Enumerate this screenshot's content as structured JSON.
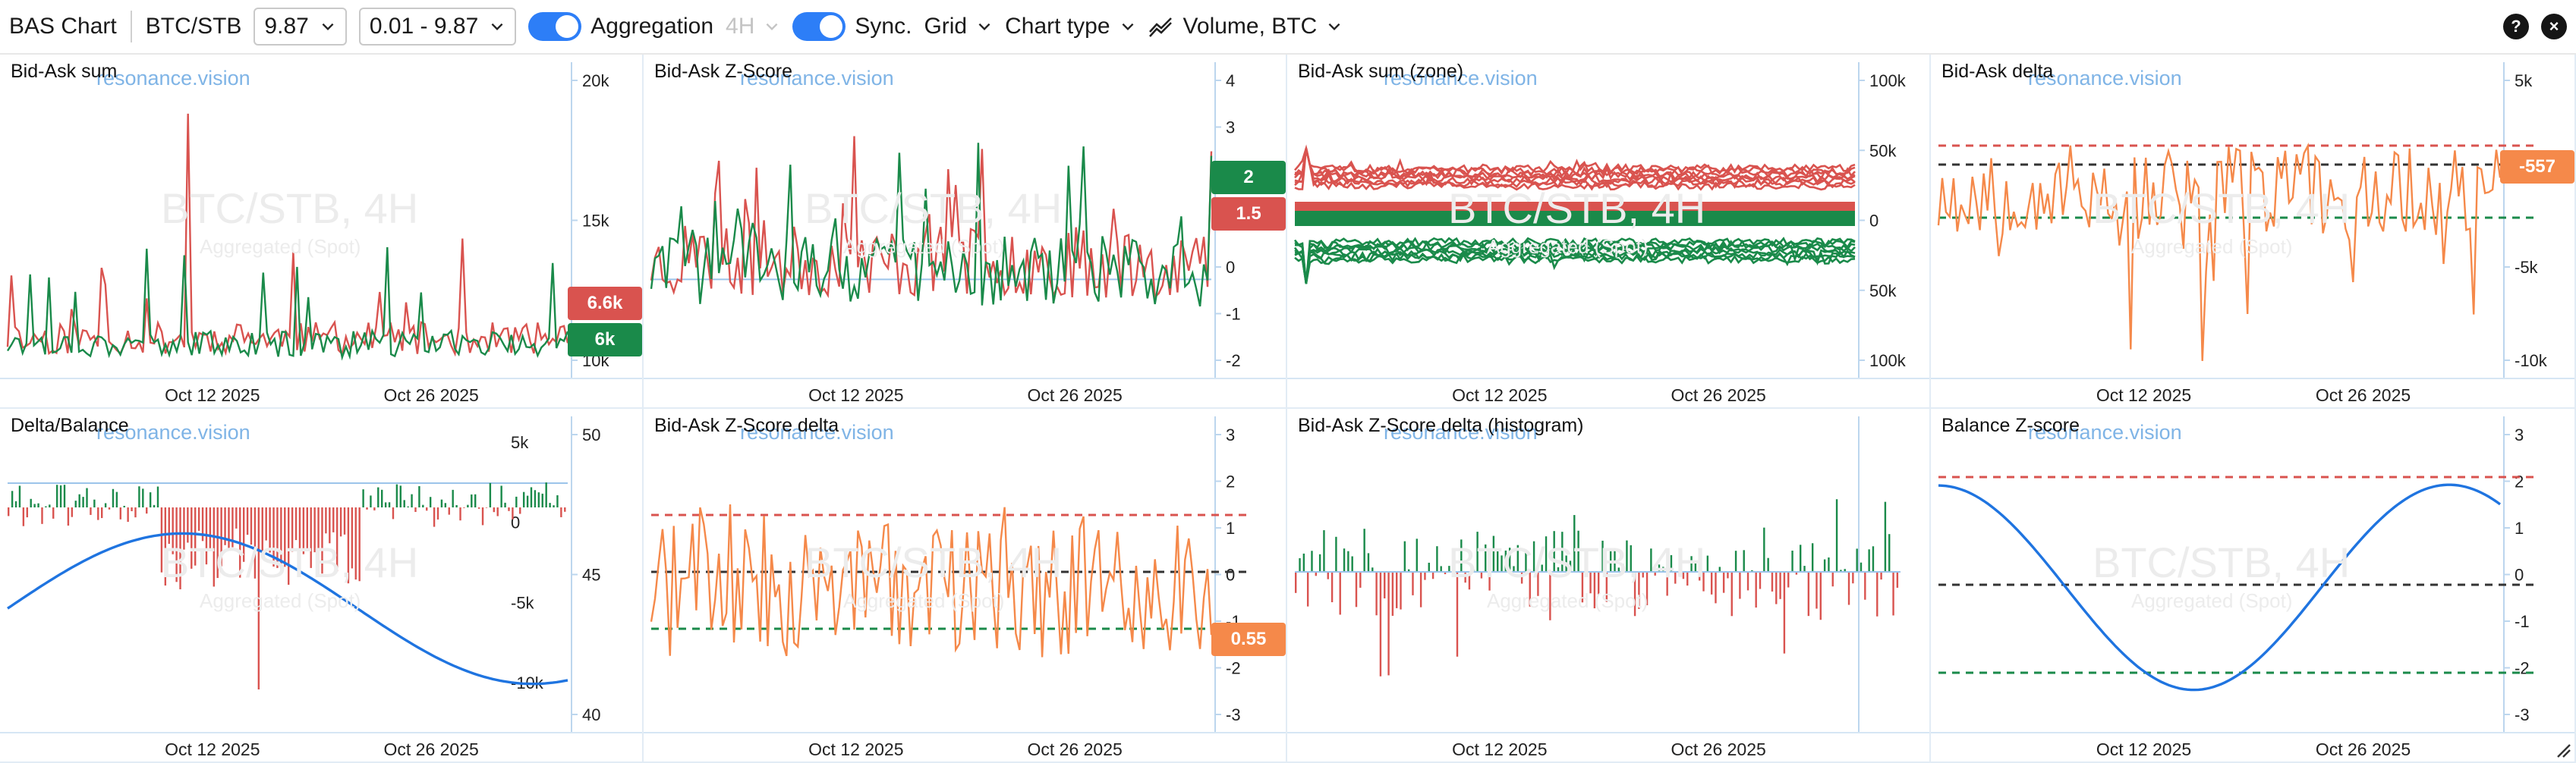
{
  "toolbar": {
    "title": "BAS Chart",
    "symbol": "BTC/STB",
    "range_value": "9.87",
    "range_interval": "0.01 - 9.87",
    "aggregation_label": "Aggregation",
    "timeframe": "4H",
    "sync_label": "Sync.",
    "grid_label": "Grid",
    "chart_type_label": "Chart type",
    "volume_label": "Volume, BTC",
    "help_symbol": "?",
    "close_symbol": "×"
  },
  "watermark": {
    "site": "resonance.vision",
    "pair": "BTC/STB, 4H",
    "sub": "Aggregated (Spot)"
  },
  "colors": {
    "red": "#d9534f",
    "green": "#1a8a4a",
    "orange": "#f5894a",
    "blue": "#1f74e0",
    "accent": "#2d7ef7"
  },
  "panels": [
    {
      "title": "Bid-Ask sum",
      "y_ticks": [
        "20k",
        "15k",
        "10k"
      ],
      "x_ticks": [
        "Oct 12 2025",
        "Oct 26 2025"
      ],
      "badges": [
        {
          "text": "6.6k",
          "color": "red"
        },
        {
          "text": "6k",
          "color": "green"
        }
      ]
    },
    {
      "title": "Bid-Ask Z-Score",
      "y_ticks": [
        "4",
        "3",
        "2",
        "1",
        "0",
        "-1",
        "-2"
      ],
      "x_ticks": [
        "Oct 12 2025",
        "Oct 26 2025"
      ],
      "badges": [
        {
          "text": "2",
          "color": "green"
        },
        {
          "text": "1.5",
          "color": "red"
        }
      ]
    },
    {
      "title": "Bid-Ask sum (zone)",
      "y_ticks": [
        "100k",
        "50k",
        "0",
        "50k",
        "100k"
      ],
      "x_ticks": [
        "Oct 12 2025",
        "Oct 26 2025"
      ],
      "badges": []
    },
    {
      "title": "Bid-Ask delta",
      "y_ticks": [
        "5k",
        "0",
        "-5k",
        "-10k"
      ],
      "x_ticks": [
        "Oct 12 2025",
        "Oct 26 2025"
      ],
      "badges": [
        {
          "text": "-557",
          "color": "orange"
        }
      ]
    },
    {
      "title": "Delta/Balance",
      "y_ticks_left": [
        "5k",
        "0",
        "-5k",
        "-10k"
      ],
      "y_ticks": [
        "50",
        "45",
        "40"
      ],
      "x_ticks": [
        "Oct 12 2025",
        "Oct 26 2025"
      ],
      "badges": []
    },
    {
      "title": "Bid-Ask Z-Score delta",
      "y_ticks": [
        "3",
        "2",
        "1",
        "0",
        "-1",
        "-2",
        "-3"
      ],
      "x_ticks": [
        "Oct 12 2025",
        "Oct 26 2025"
      ],
      "badges": [
        {
          "text": "0.55",
          "color": "orange"
        }
      ]
    },
    {
      "title": "Bid-Ask Z-Score delta (histogram)",
      "y_ticks": [],
      "x_ticks": [
        "Oct 12 2025",
        "Oct 26 2025"
      ],
      "badges": []
    },
    {
      "title": "Balance Z-score",
      "y_ticks": [
        "3",
        "2",
        "1",
        "0",
        "-1",
        "-2",
        "-3"
      ],
      "x_ticks": [
        "Oct 12 2025",
        "Oct 26 2025"
      ],
      "badges": []
    }
  ]
}
